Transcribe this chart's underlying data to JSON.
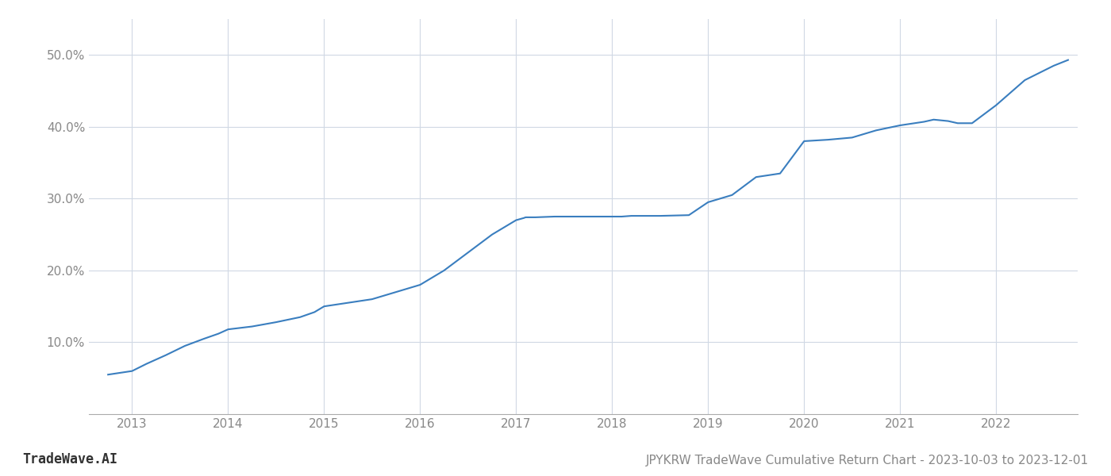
{
  "title": "JPYKRW TradeWave Cumulative Return Chart - 2023-10-03 to 2023-12-01",
  "watermark": "TradeWave.AI",
  "line_color": "#3a7ebf",
  "background_color": "#ffffff",
  "grid_color": "#d0d8e4",
  "x_years": [
    2013,
    2014,
    2015,
    2016,
    2017,
    2018,
    2019,
    2020,
    2021,
    2022
  ],
  "data_x": [
    2012.75,
    2013.0,
    2013.15,
    2013.35,
    2013.55,
    2013.75,
    2013.9,
    2014.0,
    2014.25,
    2014.5,
    2014.75,
    2014.9,
    2015.0,
    2015.25,
    2015.5,
    2015.75,
    2016.0,
    2016.25,
    2016.5,
    2016.75,
    2017.0,
    2017.08,
    2017.1,
    2017.2,
    2017.3,
    2017.4,
    2017.5,
    2017.6,
    2017.75,
    2017.9,
    2018.0,
    2018.1,
    2018.2,
    2018.5,
    2018.8,
    2019.0,
    2019.25,
    2019.5,
    2019.75,
    2020.0,
    2020.25,
    2020.5,
    2020.75,
    2021.0,
    2021.25,
    2021.35,
    2021.5,
    2021.6,
    2021.75,
    2022.0,
    2022.3,
    2022.6,
    2022.75
  ],
  "data_y": [
    5.5,
    6.0,
    7.0,
    8.2,
    9.5,
    10.5,
    11.2,
    11.8,
    12.2,
    12.8,
    13.5,
    14.2,
    15.0,
    15.5,
    16.0,
    17.0,
    18.0,
    20.0,
    22.5,
    25.0,
    27.0,
    27.3,
    27.4,
    27.4,
    27.45,
    27.5,
    27.5,
    27.5,
    27.5,
    27.5,
    27.5,
    27.5,
    27.6,
    27.6,
    27.7,
    29.5,
    30.5,
    33.0,
    33.5,
    38.0,
    38.2,
    38.5,
    39.5,
    40.2,
    40.7,
    41.0,
    40.8,
    40.5,
    40.5,
    43.0,
    46.5,
    48.5,
    49.3
  ],
  "xlim": [
    2012.55,
    2022.85
  ],
  "ylim": [
    0,
    55
  ],
  "yticks": [
    10.0,
    20.0,
    30.0,
    40.0,
    50.0
  ],
  "ytick_labels": [
    "10.0%",
    "20.0%",
    "30.0%",
    "40.0%",
    "50.0%"
  ],
  "title_fontsize": 11,
  "tick_fontsize": 11,
  "watermark_fontsize": 12,
  "line_width": 1.5
}
